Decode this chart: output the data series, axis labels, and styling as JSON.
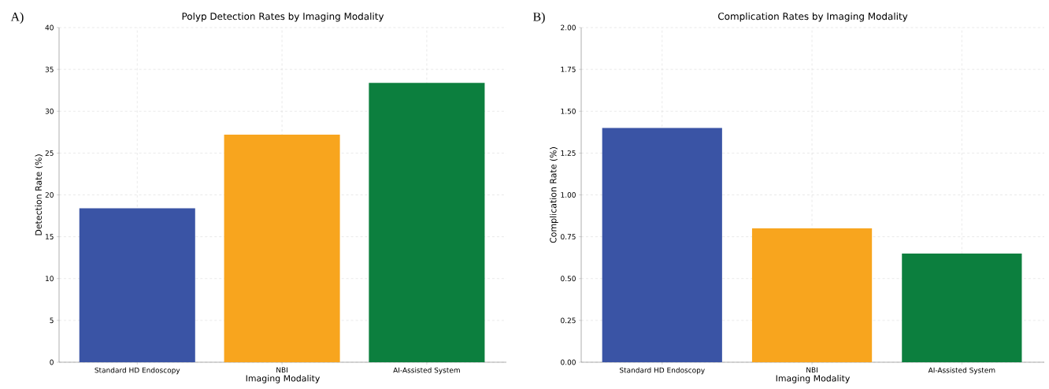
{
  "chart_data": [
    {
      "type": "bar",
      "title": "Polyp Detection Rates by Imaging Modality",
      "xlabel": "Imaging Modality",
      "ylabel": "Detection Rate (%)",
      "categories": [
        "Standard HD Endoscopy",
        "NBI",
        "AI-Assisted System"
      ],
      "values": [
        18.4,
        27.2,
        33.4
      ],
      "colors": [
        "#3a54a5",
        "#f8a51e",
        "#0c7f3e"
      ],
      "ylim": [
        0,
        40
      ],
      "yticks": [
        0,
        5,
        10,
        15,
        20,
        25,
        30,
        35,
        40
      ],
      "grid": true,
      "annotations": [
        "A)"
      ]
    },
    {
      "type": "bar",
      "title": "Complication Rates by Imaging Modality",
      "xlabel": "Imaging Modality",
      "ylabel": "Complication Rate (%)",
      "categories": [
        "Standard HD Endoscopy",
        "NBI",
        "AI-Assisted System"
      ],
      "values": [
        1.4,
        0.8,
        0.65
      ],
      "colors": [
        "#3a54a5",
        "#f8a51e",
        "#0c7f3e"
      ],
      "ylim": [
        0,
        2
      ],
      "yticks": [
        {
          "value": 0,
          "label": "0.00"
        },
        {
          "value": 0.25,
          "label": "0.25"
        },
        {
          "value": 0.5,
          "label": "0.50"
        },
        {
          "value": 0.75,
          "label": "0.75"
        },
        {
          "value": 1,
          "label": "1.00"
        },
        {
          "value": 1.25,
          "label": "1.25"
        },
        {
          "value": 1.5,
          "label": "1.50"
        },
        {
          "value": 1.75,
          "label": "1.75"
        },
        {
          "value": 2,
          "label": "2.00"
        }
      ],
      "grid": true,
      "annotations": [
        "B)"
      ]
    }
  ]
}
